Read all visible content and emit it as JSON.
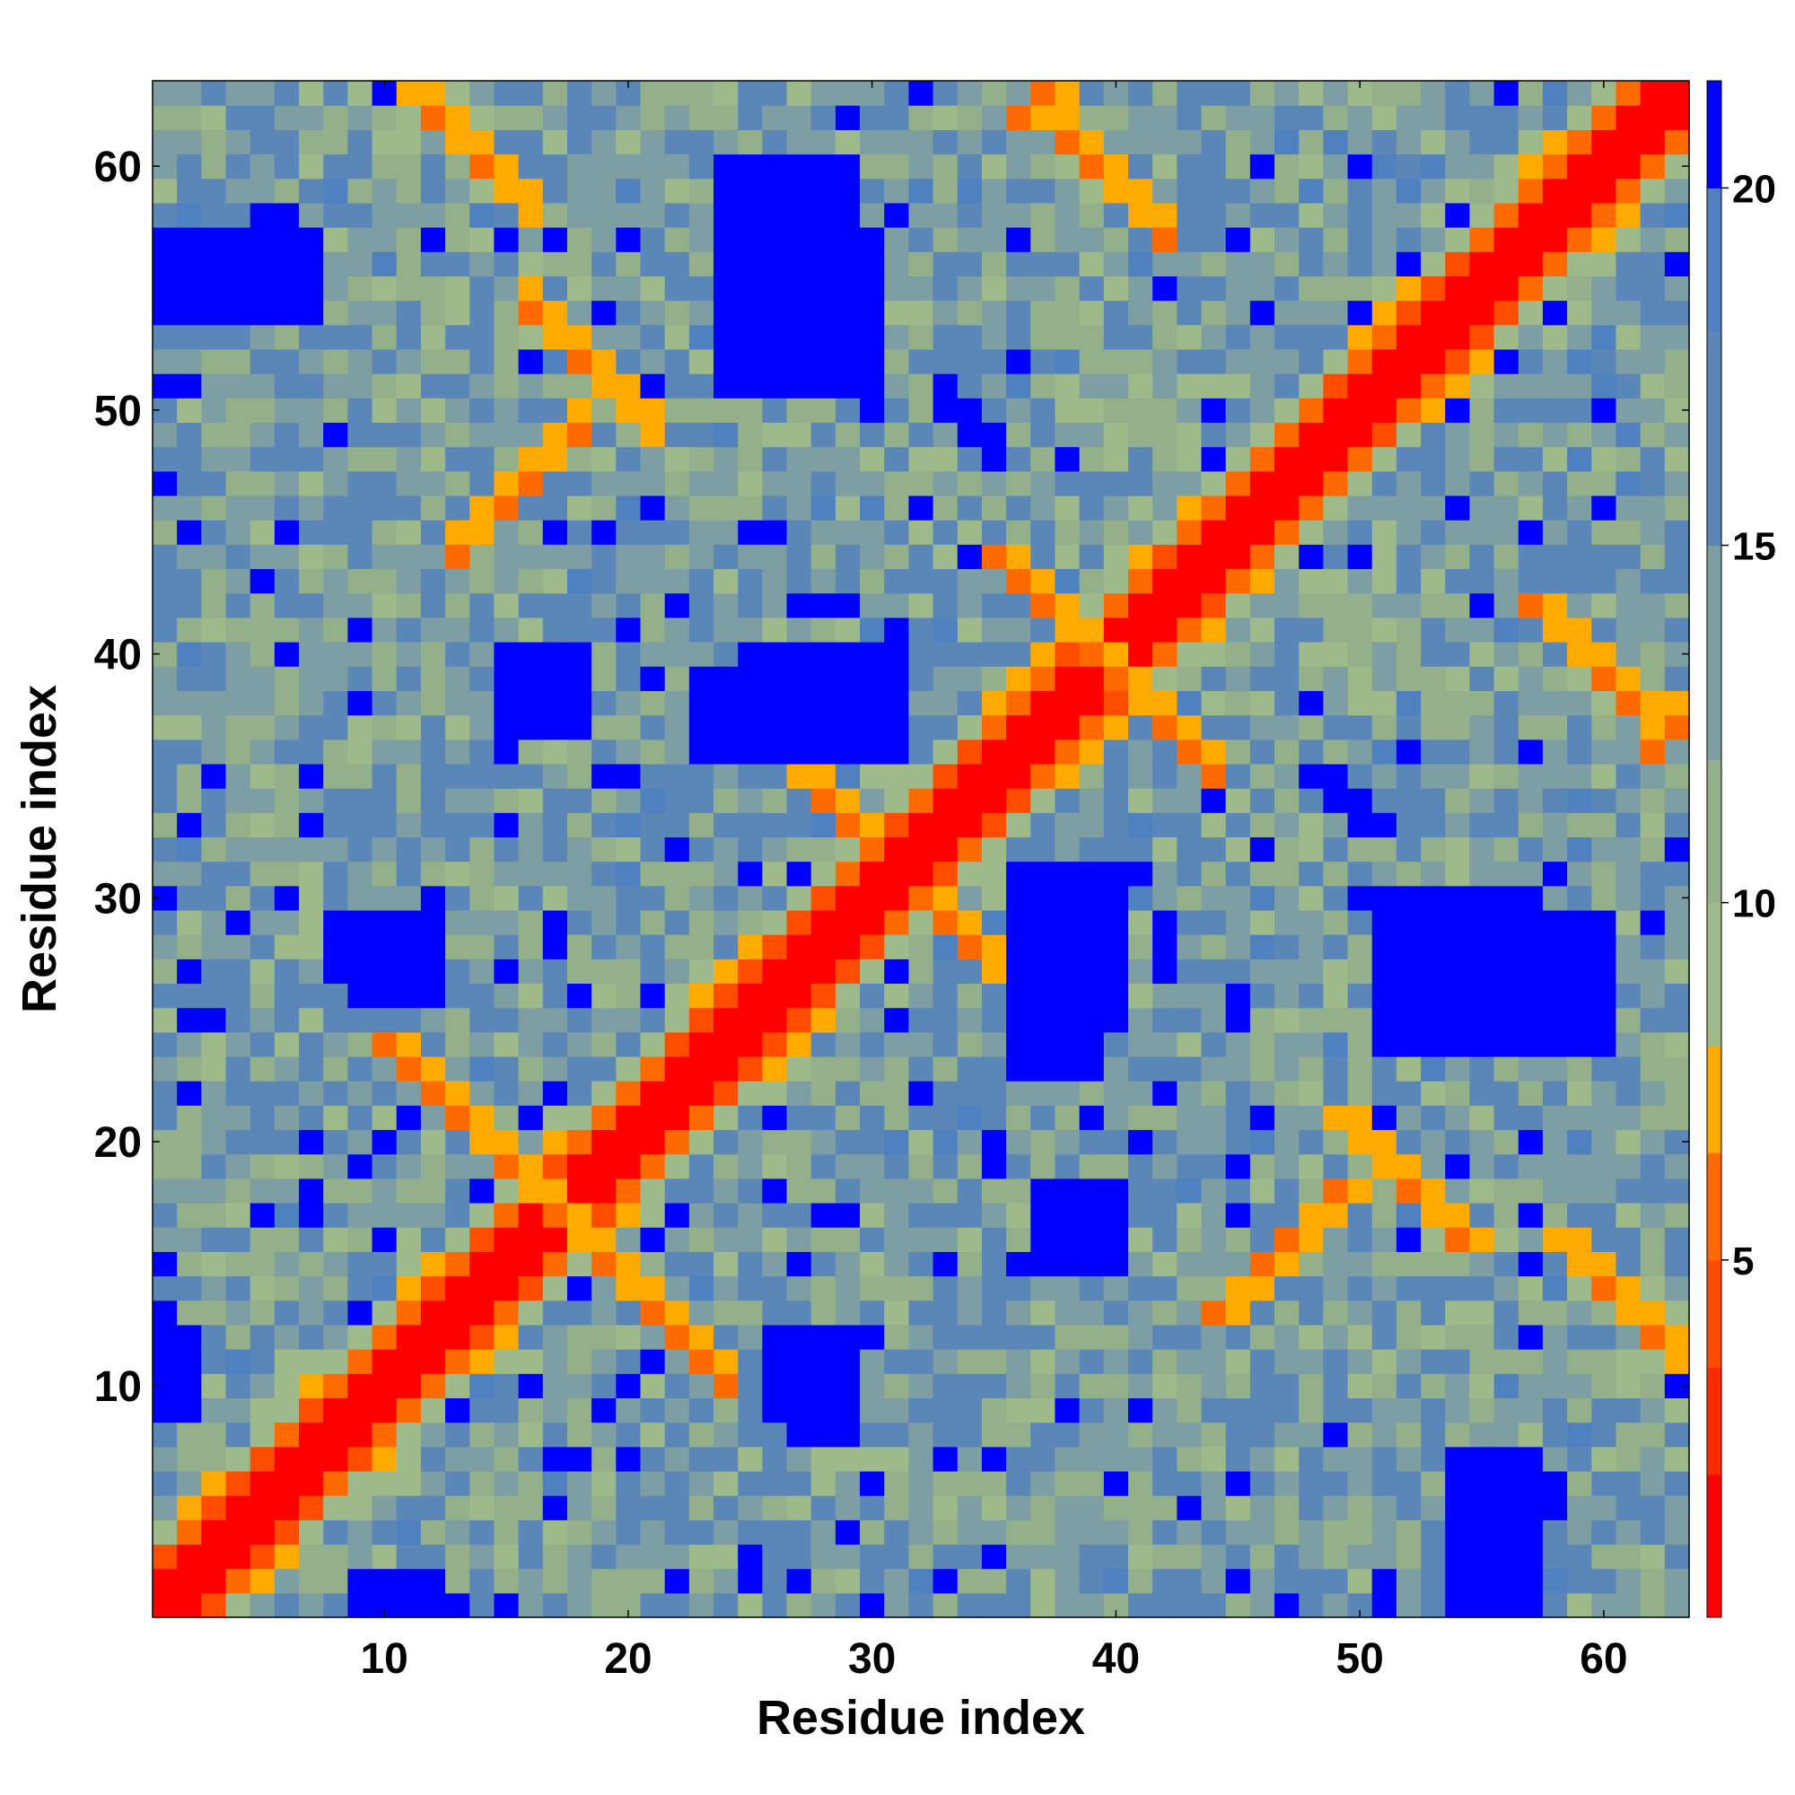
{
  "chart_data": {
    "type": "heatmap",
    "title": "",
    "xlabel": "Residue index",
    "ylabel": "Residue index",
    "xlim": [
      0.5,
      63.5
    ],
    "ylim": [
      0.5,
      63.5
    ],
    "x_ticks": [
      10,
      20,
      30,
      40,
      50,
      60
    ],
    "y_ticks": [
      10,
      20,
      30,
      40,
      50,
      60
    ],
    "n_residues": 63,
    "colorbar": {
      "ticks": [
        5,
        10,
        15,
        20
      ],
      "range": [
        0,
        21.5
      ],
      "bins": [
        {
          "upto": 2,
          "color": "#ff0000"
        },
        {
          "upto": 3.5,
          "color": "#ff2a00"
        },
        {
          "upto": 5,
          "color": "#ff4d00"
        },
        {
          "upto": 6.5,
          "color": "#ff6a00"
        },
        {
          "upto": 8,
          "color": "#ffaa00"
        },
        {
          "upto": 10,
          "color": "#9eb98a"
        },
        {
          "upto": 12,
          "color": "#93b08a"
        },
        {
          "upto": 15,
          "color": "#7d9ea3"
        },
        {
          "upto": 18,
          "color": "#5b87b8"
        },
        {
          "upto": 20,
          "color": "#4f80c0"
        },
        {
          "upto": 99,
          "color": "#0000ff"
        }
      ]
    },
    "description_of_values": "Pairwise residue distance matrix (symmetric); small values along the diagonal and secondary-structure contacts, large values (>20) shown in blue.",
    "contact_features": [
      {
        "type": "antiparallel_band",
        "i_start": 10,
        "j_start": 16,
        "length": 8
      },
      {
        "type": "antiparallel_band",
        "i_start": 24,
        "j_start": 32,
        "length": 6
      },
      {
        "type": "antiparallel_band",
        "i_start": 35,
        "j_start": 36,
        "length": 8
      },
      {
        "type": "antiparallel_band",
        "i_start": 49,
        "j_start": 15,
        "length": 6
      },
      {
        "type": "antiparallel_band",
        "i_start": 57,
        "j_start": 36,
        "length": 6
      },
      {
        "type": "antiparallel_band",
        "i_start": 58,
        "j_start": 10,
        "length": 6
      },
      {
        "type": "parallel_band",
        "i_start": 44,
        "j_start": 13,
        "length": 6
      },
      {
        "type": "parallel_band",
        "i_start": 36,
        "j_start": 62,
        "length": 5
      }
    ],
    "far_regions": [
      {
        "i": [
          24,
          29
        ],
        "j": [
          53,
          60
        ]
      },
      {
        "i": [
          36,
          39
        ],
        "j": [
          23,
          31
        ]
      },
      {
        "i": [
          25,
          31
        ],
        "j": [
          36,
          40
        ]
      },
      {
        "i": [
          24,
          30
        ],
        "j": [
          51,
          57
        ]
      },
      {
        "i": [
          10,
          12
        ],
        "j": [
          26,
          29
        ]
      },
      {
        "i": [
          9,
          12
        ],
        "j": [
          1,
          2
        ]
      },
      {
        "i": [
          54,
          57
        ],
        "j": [
          1,
          7
        ]
      },
      {
        "i": [
          37,
          40
        ],
        "j": [
          15,
          18
        ]
      },
      {
        "i": [
          27,
          29
        ],
        "j": [
          8,
          12
        ]
      }
    ]
  }
}
